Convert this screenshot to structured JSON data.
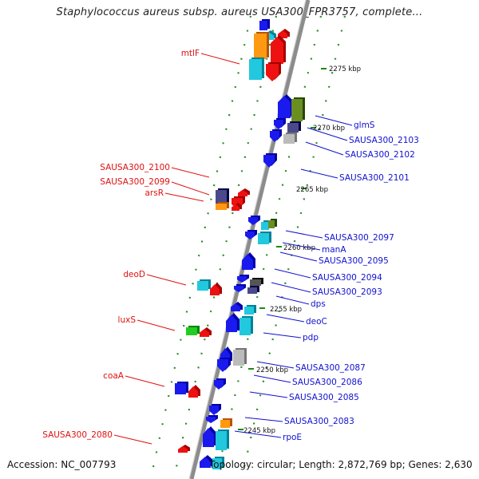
{
  "title": "Staphylococcus aureus subsp. aureus USA300_FPR3757, complete...",
  "footer": {
    "accession": "Accession: NC_007793",
    "topology": "Topology: circular; Length: 2,872,769 bp; Genes: 2,630"
  },
  "colors": {
    "backbone": "#8c8c8c",
    "tick_dots": "#2e8b2e",
    "label_left": "#e01010",
    "label_right": "#1010d0",
    "gene_red": "#ee1111",
    "gene_blue": "#1a1aee",
    "gene_cyan": "#22c8dd",
    "gene_orange": "#ff9911",
    "gene_olive": "#6b8e23",
    "gene_slate": "#4a4a8a",
    "gene_gray": "#bbbbbb",
    "gene_green": "#22cc22"
  },
  "kbp_ticks": [
    "2275 kbp",
    "2270 kbp",
    "2265 kbp",
    "2260 kbp",
    "2255 kbp",
    "2250 kbp",
    "2245 kbp"
  ],
  "left_labels": [
    "mtlF",
    "SAUSA300_2100",
    "SAUSA300_2099",
    "arsR",
    "deoD",
    "luxS",
    "coaA",
    "SAUSA300_2080"
  ],
  "right_labels": [
    "glmS",
    "SAUSA300_2103",
    "SAUSA300_2102",
    "SAUSA300_2101",
    "SAUSA300_2097",
    "manA",
    "SAUSA300_2095",
    "SAUSA300_2094",
    "SAUSA300_2093",
    "dps",
    "deoC",
    "pdp",
    "SAUSA300_2087",
    "SAUSA300_2086",
    "SAUSA300_2085",
    "SAUSA300_2083",
    "rpoE"
  ]
}
